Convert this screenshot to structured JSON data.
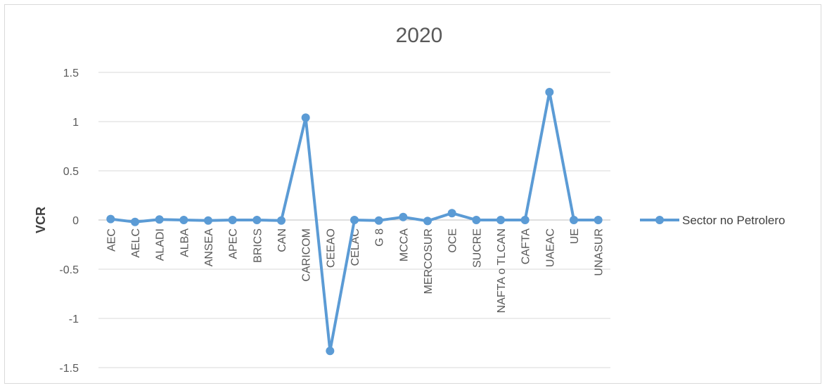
{
  "chart_data": {
    "type": "line",
    "title": "2020",
    "xlabel": "",
    "ylabel": "VCR",
    "ylim": [
      -1.5,
      1.5
    ],
    "yticks": [
      1.5,
      1,
      0.5,
      0,
      -0.5,
      -1,
      -1.5
    ],
    "ytick_labels": [
      "1.5",
      "1",
      "0.5",
      "0",
      "-0.5",
      "-1",
      "-1.5"
    ],
    "grid": true,
    "legend_position": "right",
    "categories": [
      "AEC",
      "AELC",
      "ALADI",
      "ALBA",
      "ANSEA",
      "APEC",
      "BRICS",
      "CAN",
      "CARICOM",
      "CEEAO",
      "CELAC",
      "G 8",
      "MCCA",
      "MERCOSUR",
      "OCE",
      "SUCRE",
      "NAFTA o TLCAN",
      "CAFTA",
      "UAEAC",
      "UE",
      "UNASUR"
    ],
    "series": [
      {
        "name": "Sector no Petrolero",
        "color": "#5b9bd5",
        "values": [
          0.01,
          -0.02,
          0.005,
          0.0,
          -0.005,
          0.0,
          0.0,
          -0.005,
          1.04,
          -1.33,
          0.0,
          -0.005,
          0.03,
          -0.01,
          0.07,
          0.0,
          0.0,
          0.0,
          1.3,
          0.0,
          0.0
        ]
      }
    ]
  }
}
